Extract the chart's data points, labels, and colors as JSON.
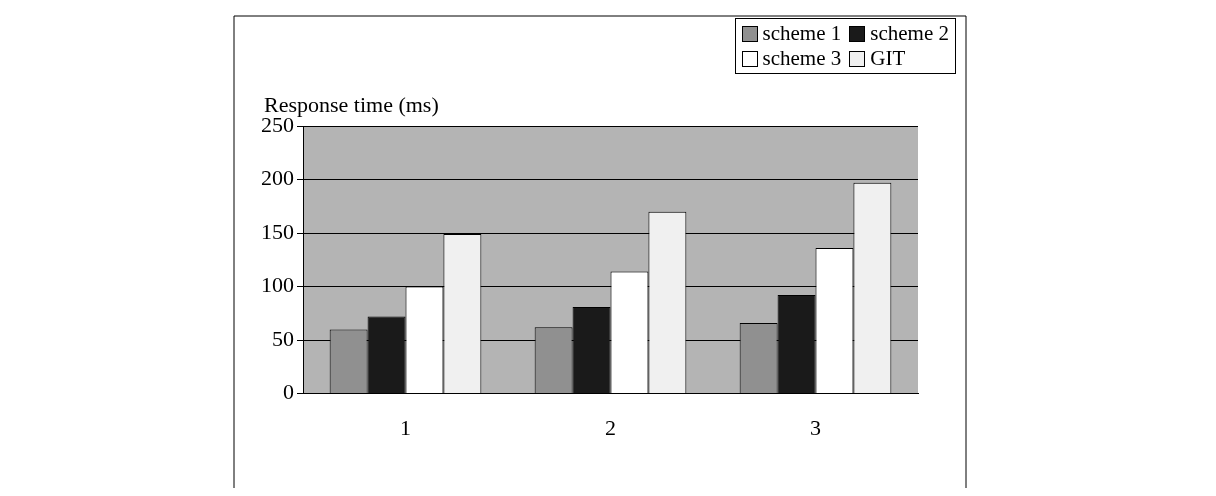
{
  "chart_data": {
    "type": "bar",
    "ylabel": "Response time (ms)",
    "categories": [
      "1",
      "2",
      "3"
    ],
    "series": [
      {
        "name": "scheme 1",
        "color": "#909090",
        "values": [
          60,
          62,
          66
        ]
      },
      {
        "name": "scheme 2",
        "color": "#1a1a1a",
        "values": [
          72,
          81,
          92
        ]
      },
      {
        "name": "scheme 3",
        "color": "#ffffff",
        "values": [
          100,
          114,
          136
        ]
      },
      {
        "name": "GIT",
        "color": "#f0f0f0",
        "values": [
          149,
          170,
          197
        ]
      }
    ],
    "ylim": [
      0,
      250
    ],
    "yticks": [
      0,
      50,
      100,
      150,
      200,
      250
    ],
    "grid": "y",
    "legend": "top right"
  }
}
